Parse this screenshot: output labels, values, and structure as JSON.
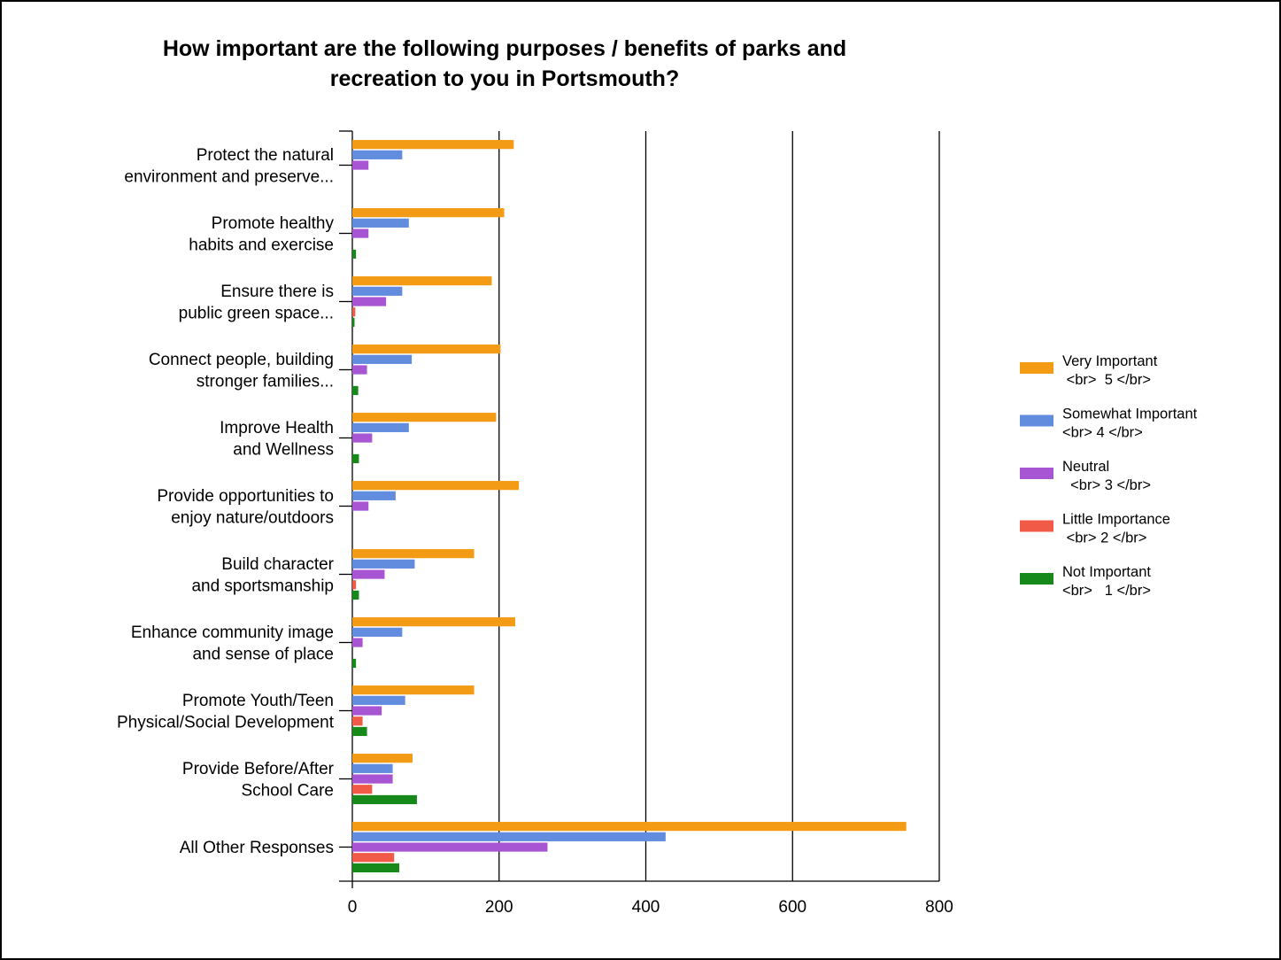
{
  "chart_data": {
    "type": "bar",
    "orientation": "horizontal",
    "title_lines": [
      "How important are the following purposes / benefits of parks and",
      "recreation to you in Portsmouth?"
    ],
    "categories": [
      [
        "Protect the natural",
        "environment and preserve..."
      ],
      [
        "Promote healthy",
        "habits and exercise"
      ],
      [
        "Ensure there is",
        "public green space..."
      ],
      [
        "Connect people, building",
        "stronger families..."
      ],
      [
        "Improve Health",
        "and Wellness"
      ],
      [
        "Provide opportunities to",
        "enjoy nature/outdoors"
      ],
      [
        "Build character",
        "and sportsmanship"
      ],
      [
        "Enhance community image",
        "and sense of place"
      ],
      [
        "Promote Youth/Teen",
        "Physical/Social Development"
      ],
      [
        "Provide Before/After",
        "School Care"
      ],
      [
        "All Other Responses"
      ]
    ],
    "series": [
      {
        "name": [
          "Very Important",
          " <br>  5 </br>"
        ],
        "color": "#f39b15",
        "values": [
          220,
          207,
          190,
          202,
          196,
          227,
          166,
          222,
          166,
          82,
          755
        ]
      },
      {
        "name": [
          "Somewhat Important",
          "<br> 4 </br>"
        ],
        "color": "#628cde",
        "values": [
          68,
          77,
          68,
          81,
          77,
          59,
          85,
          68,
          72,
          55,
          427
        ]
      },
      {
        "name": [
          "Neutral",
          "  <br> 3 </br>"
        ],
        "color": "#a855d3",
        "values": [
          22,
          22,
          46,
          20,
          27,
          22,
          44,
          14,
          40,
          55,
          266
        ]
      },
      {
        "name": [
          "Little Importance",
          " <br> 2 </br>"
        ],
        "color": "#f05a47",
        "values": [
          0,
          0,
          4,
          0,
          0,
          0,
          5,
          0,
          14,
          27,
          57
        ]
      },
      {
        "name": [
          "Not Important",
          "<br>   1 </br>"
        ],
        "color": "#17891b",
        "values": [
          0,
          5,
          3,
          8,
          9,
          0,
          9,
          5,
          20,
          88,
          64
        ]
      }
    ],
    "xlim": [
      0,
      800
    ],
    "xticks": [
      "0",
      "200",
      "400",
      "600",
      "800"
    ],
    "xtick_values": [
      0,
      200,
      400,
      600,
      800
    ],
    "grid": "vertical",
    "legend_position": "right"
  }
}
